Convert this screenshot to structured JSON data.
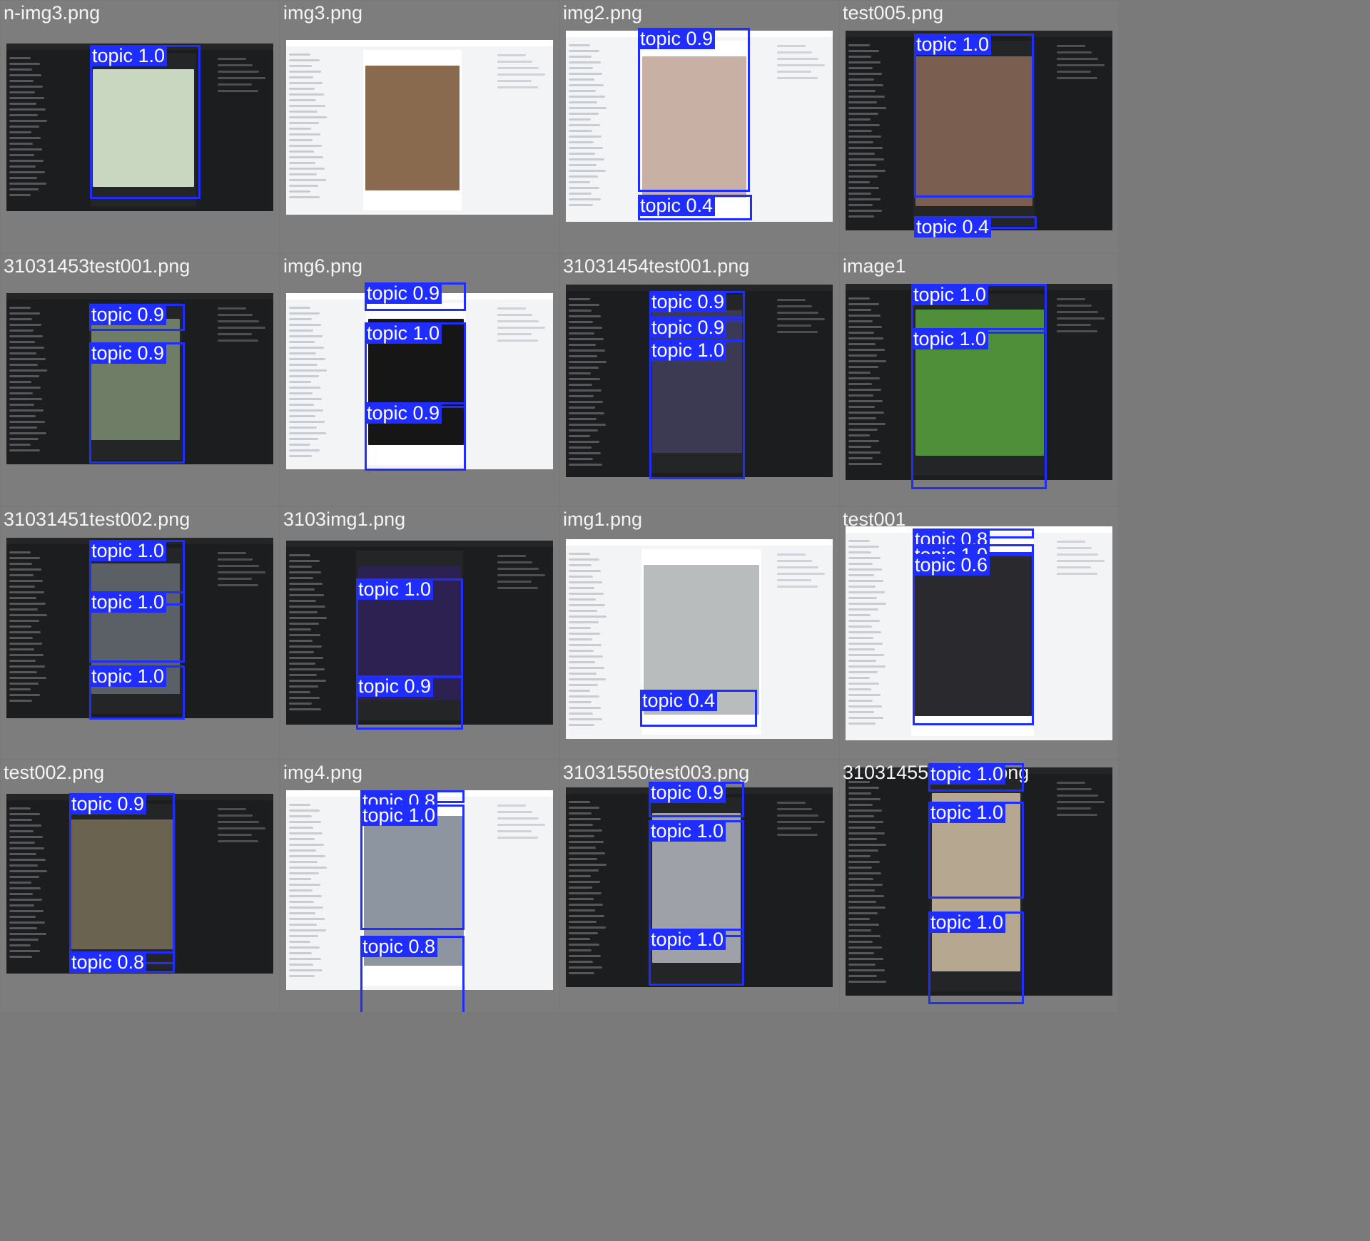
{
  "tiles": [
    {
      "filename": "n-img3.png",
      "theme": "dark",
      "img": "#c9d6c0",
      "labels": [
        "topic 1.0"
      ]
    },
    {
      "filename": "img3.png",
      "theme": "light",
      "img": "#8a6a4e",
      "labels": []
    },
    {
      "filename": "img2.png",
      "theme": "light",
      "img": "#c8b0a4",
      "labels": [
        "topic 0.9",
        "topic 0.4"
      ]
    },
    {
      "filename": "test005.png",
      "theme": "dark",
      "img": "#7a5e50",
      "labels": [
        "topic 1.0",
        "topic 0.4"
      ]
    },
    {
      "filename": "31031453test001.png",
      "theme": "dark",
      "img": "#6f7d66",
      "labels": [
        "topic 0.9",
        "topic 0.9"
      ]
    },
    {
      "filename": "img6.png",
      "theme": "light",
      "img": "#161616",
      "labels": [
        "topic 0.9",
        "topic 1.0",
        "topic 0.9"
      ]
    },
    {
      "filename": "31031454test001.png",
      "theme": "dark",
      "img": "#3b3a52",
      "labels": [
        "topic 0.9",
        "topic 0.9",
        "topic 1.0"
      ]
    },
    {
      "filename": "image1",
      "theme": "dark",
      "img": "#4f8f3a",
      "labels": [
        "topic 1.0",
        "topic 1.0"
      ]
    },
    {
      "filename": "31031451test002.png",
      "theme": "dark",
      "img": "#5b5f66",
      "labels": [
        "topic 1.0",
        "topic 1.0",
        "topic 1.0"
      ]
    },
    {
      "filename": "3103img1.png",
      "theme": "dark",
      "img": "#2c2150",
      "labels": [
        "topic 1.0",
        "topic 0.9"
      ]
    },
    {
      "filename": "img1.png",
      "theme": "light",
      "img": "#b8bcbc",
      "labels": [
        "topic 0.4"
      ]
    },
    {
      "filename": "test001",
      "theme": "light",
      "img": "#2a2a2e",
      "labels": [
        "topic 0.8",
        "topic 1.0",
        "topic 0.6"
      ]
    },
    {
      "filename": "test002.png",
      "theme": "dark",
      "img": "#6a6350",
      "labels": [
        "topic 0.9",
        "topic 0.8"
      ]
    },
    {
      "filename": "img4.png",
      "theme": "light",
      "img": "#8d96a0",
      "labels": [
        "topic 0.8",
        "topic 1.0",
        "topic 0.8"
      ]
    },
    {
      "filename": "31031550test003.png",
      "theme": "dark",
      "img": "#9ea2a8",
      "labels": [
        "topic 0.9",
        "topic 1.0",
        "topic 1.0"
      ]
    },
    {
      "filename": "31031455test003.png",
      "theme": "dark",
      "img": "#b6a890",
      "labels": [
        "topic 1.0",
        "topic 1.0",
        "topic 1.0"
      ]
    }
  ],
  "colors": {
    "box": "#1f2eff",
    "background": "#7a7a7a"
  }
}
